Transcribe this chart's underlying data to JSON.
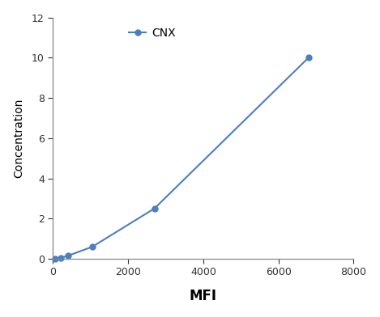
{
  "x": [
    50,
    200,
    400,
    1050,
    2700,
    6800
  ],
  "y": [
    0.0,
    0.05,
    0.15,
    0.6,
    2.5,
    10.0
  ],
  "line_color": "#4D7EBF",
  "marker": "o",
  "marker_size": 5,
  "legend_label": "CNX",
  "xlabel": "MFI",
  "ylabel": "Concentration",
  "xlim": [
    0,
    8000
  ],
  "ylim": [
    0,
    12
  ],
  "xticks": [
    0,
    2000,
    4000,
    6000,
    8000
  ],
  "xticklabels": [
    "0",
    "2000",
    "4000",
    "6000",
    "8000"
  ],
  "yticks": [
    0,
    2,
    4,
    6,
    8,
    10,
    12
  ],
  "xlabel_fontsize": 12,
  "ylabel_fontsize": 10,
  "legend_fontsize": 10,
  "tick_fontsize": 9,
  "background_color": "#ffffff",
  "spine_color": "#888888"
}
